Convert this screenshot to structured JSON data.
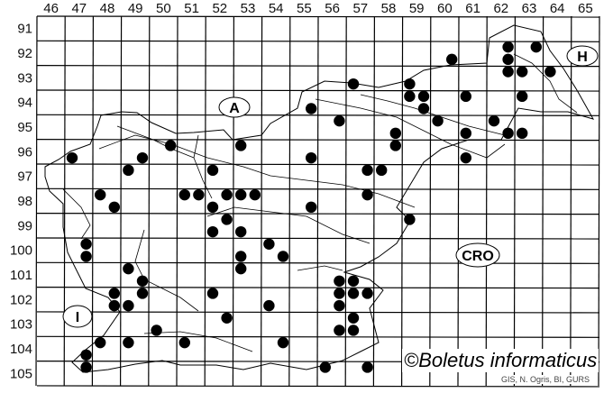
{
  "map": {
    "columns": [
      "46",
      "47",
      "48",
      "49",
      "50",
      "51",
      "52",
      "53",
      "54",
      "55",
      "56",
      "57",
      "58",
      "59",
      "60",
      "61",
      "62",
      "63",
      "64",
      "65"
    ],
    "rows": [
      "91",
      "92",
      "93",
      "94",
      "95",
      "96",
      "97",
      "98",
      "99",
      "100",
      "101",
      "102",
      "103",
      "104",
      "105"
    ],
    "country_labels": [
      {
        "text": "A",
        "name": "austria"
      },
      {
        "text": "H",
        "name": "hungary"
      },
      {
        "text": "CRO",
        "name": "croatia"
      },
      {
        "text": "I",
        "name": "italy"
      }
    ],
    "dot_color": "#000000",
    "records": [
      [
        62.75,
        92.25
      ],
      [
        63.75,
        92.25
      ],
      [
        62.75,
        92.75
      ],
      [
        60.75,
        92.75
      ],
      [
        62.75,
        93.25
      ],
      [
        63.25,
        93.25
      ],
      [
        64.25,
        93.25
      ],
      [
        57.25,
        93.75
      ],
      [
        59.25,
        93.75
      ],
      [
        59.25,
        94.25
      ],
      [
        59.75,
        94.25
      ],
      [
        59.75,
        94.75
      ],
      [
        61.25,
        94.25
      ],
      [
        63.25,
        94.25
      ],
      [
        55.75,
        94.75
      ],
      [
        56.75,
        95.25
      ],
      [
        60.25,
        95.25
      ],
      [
        62.25,
        95.25
      ],
      [
        58.75,
        95.75
      ],
      [
        61.25,
        95.75
      ],
      [
        62.75,
        95.75
      ],
      [
        63.25,
        95.75
      ],
      [
        58.75,
        96.25
      ],
      [
        61.25,
        96.75
      ],
      [
        55.75,
        96.75
      ],
      [
        57.75,
        97.25
      ],
      [
        58.25,
        97.25
      ],
      [
        50.75,
        96.25
      ],
      [
        53.25,
        96.25
      ],
      [
        47.25,
        96.75
      ],
      [
        49.75,
        96.75
      ],
      [
        49.25,
        97.25
      ],
      [
        52.25,
        97.25
      ],
      [
        48.25,
        98.25
      ],
      [
        51.25,
        98.25
      ],
      [
        51.75,
        98.25
      ],
      [
        52.75,
        98.25
      ],
      [
        53.25,
        98.25
      ],
      [
        53.75,
        98.25
      ],
      [
        48.75,
        98.75
      ],
      [
        52.25,
        98.75
      ],
      [
        52.75,
        99.25
      ],
      [
        52.25,
        99.75
      ],
      [
        53.25,
        99.75
      ],
      [
        55.75,
        98.75
      ],
      [
        57.75,
        98.25
      ],
      [
        59.25,
        99.25
      ],
      [
        54.25,
        100.25
      ],
      [
        54.75,
        100.75
      ],
      [
        53.25,
        100.75
      ],
      [
        53.25,
        101.25
      ],
      [
        47.75,
        100.25
      ],
      [
        47.75,
        100.75
      ],
      [
        49.25,
        101.25
      ],
      [
        49.75,
        101.75
      ],
      [
        49.75,
        102.25
      ],
      [
        48.75,
        102.25
      ],
      [
        48.75,
        102.75
      ],
      [
        49.25,
        102.75
      ],
      [
        52.25,
        102.25
      ],
      [
        54.25,
        102.75
      ],
      [
        52.75,
        103.25
      ],
      [
        50.25,
        103.75
      ],
      [
        49.25,
        104.25
      ],
      [
        48.25,
        104.25
      ],
      [
        51.25,
        104.25
      ],
      [
        54.75,
        104.25
      ],
      [
        47.75,
        104.75
      ],
      [
        47.75,
        105.25
      ],
      [
        56.75,
        101.75
      ],
      [
        57.25,
        101.75
      ],
      [
        56.75,
        102.25
      ],
      [
        57.25,
        102.25
      ],
      [
        57.75,
        102.25
      ],
      [
        56.75,
        102.75
      ],
      [
        57.25,
        103.25
      ],
      [
        56.75,
        103.75
      ],
      [
        57.25,
        103.75
      ],
      [
        56.25,
        105.25
      ],
      [
        57.75,
        105.25
      ]
    ]
  },
  "copyright": "©Boletus informaticus",
  "credit": "GIS, N. Ogris, BI, GURS"
}
